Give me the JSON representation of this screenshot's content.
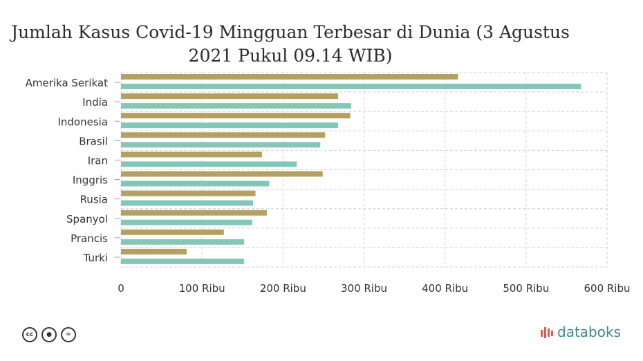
{
  "title": "Jumlah Kasus Covid-19 Mingguan Terbesar di Dunia (3 Agustus 2021 Pukul 09.14 WIB)",
  "brand": "databoks",
  "colors": {
    "series1": "#b3a062",
    "series2": "#84c6b8",
    "grid": "#cfcfcf",
    "brand": "#3a8a8a",
    "brand_accent": "#e05a4f"
  },
  "icons": [
    "cc-icon",
    "by-icon",
    "nd-icon"
  ],
  "chart_data": {
    "type": "bar",
    "orientation": "horizontal",
    "categories": [
      "Amerika Serikat",
      "India",
      "Indonesia",
      "Brasil",
      "Iran",
      "Inggris",
      "Rusia",
      "Spanyol",
      "Prancis",
      "Turki"
    ],
    "series": [
      {
        "values": [
          416000,
          268000,
          283000,
          252000,
          174000,
          249000,
          166000,
          180000,
          127000,
          81000
        ]
      },
      {
        "values": [
          568000,
          284000,
          268000,
          246000,
          217000,
          183000,
          163000,
          162000,
          152000,
          152000
        ]
      }
    ],
    "xticks": [
      "0",
      "100 Ribu",
      "200 Ribu",
      "300 Ribu",
      "400 Ribu",
      "500 Ribu",
      "600 Ribu"
    ],
    "xlim": [
      0,
      600000
    ],
    "grid": true
  }
}
